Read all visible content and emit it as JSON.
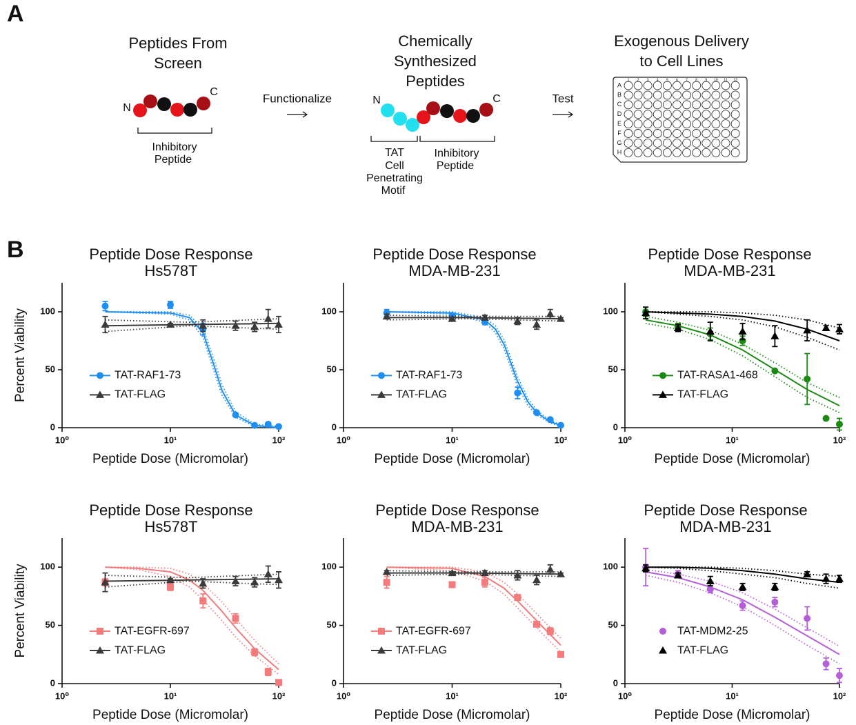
{
  "panel_a": {
    "label": "A",
    "step1": {
      "title": [
        "Peptides From",
        "Screen"
      ],
      "n": "N",
      "c": "C",
      "bracket": [
        "Inhibitory",
        "Peptide"
      ]
    },
    "arrow1": "Functionalize",
    "step2": {
      "title": [
        "Chemically",
        "Synthesized",
        "Peptides"
      ],
      "n": "N",
      "c": "C",
      "bracket_left": [
        "TAT",
        "Cell",
        "Penetrating",
        "Motif"
      ],
      "bracket_right": [
        "Inhibitory",
        "Peptide"
      ]
    },
    "arrow2": "Test",
    "step3": {
      "title": [
        "Exogenous Delivery",
        "to Cell Lines"
      ],
      "rows": [
        "A",
        "B",
        "C",
        "D",
        "E",
        "F",
        "G",
        "H"
      ],
      "columns": [
        "1",
        "2",
        "3",
        "4",
        "5",
        "6",
        "7",
        "8",
        "9",
        "10",
        "11",
        "12"
      ]
    }
  },
  "panel_b_label": "B",
  "chart_data": [
    {
      "type": "scatter",
      "title": "Peptide Dose Response",
      "subtitle": "Hs578T",
      "xlabel": "Peptide Dose (Micromolar)",
      "ylabel": "Percent Viability",
      "xscale": "log",
      "xlim": [
        1,
        100
      ],
      "ylim": [
        0,
        125
      ],
      "xticks": [
        {
          "value": 1,
          "label": "10⁰"
        },
        {
          "value": 10,
          "label": "10¹"
        },
        {
          "value": 100,
          "label": "10²"
        }
      ],
      "yticks": [
        0,
        50,
        100
      ],
      "legend": "lower left",
      "x": [
        2.5,
        10,
        20,
        40,
        60,
        80,
        100
      ],
      "series": [
        {
          "name": "TAT-RAF1-73",
          "color": "#1f8ef1",
          "marker": "circle",
          "values": [
            105,
            106,
            85,
            11,
            2,
            3,
            1
          ],
          "errors": [
            4,
            3,
            5,
            1,
            1,
            1,
            1
          ],
          "fit": {
            "x": [
              2.5,
              10,
              15,
              20,
              25,
              30,
              40,
              60,
              100
            ],
            "values": [
              100,
              99,
              95,
              82,
              55,
              32,
              11,
              2,
              0
            ],
            "lower": [
              100,
              98,
              93,
              78,
              50,
              28,
              9,
              1,
              0
            ],
            "upper": [
              100,
              100,
              97,
              86,
              60,
              37,
              14,
              3,
              1
            ]
          }
        },
        {
          "name": "TAT-FLAG",
          "color": "#3a3a3a",
          "marker": "triangle",
          "values": [
            89,
            89,
            88,
            88,
            87,
            94,
            89
          ],
          "errors": [
            7,
            1,
            5,
            4,
            4,
            8,
            7
          ],
          "fit": {
            "x": [
              2.5,
              15,
              100
            ],
            "values": [
              88,
              89,
              90
            ],
            "lower": [
              83,
              88,
              85
            ],
            "upper": [
              93,
              91,
              94
            ]
          }
        }
      ]
    },
    {
      "type": "scatter",
      "title": "Peptide Dose Response",
      "subtitle": "MDA-MB-231",
      "xlabel": "Peptide Dose (Micromolar)",
      "xscale": "log",
      "xlim": [
        1,
        100
      ],
      "ylim": [
        0,
        125
      ],
      "xticks": [
        {
          "value": 1,
          "label": "10⁰"
        },
        {
          "value": 10,
          "label": "10¹"
        },
        {
          "value": 100,
          "label": "10²"
        }
      ],
      "yticks": [
        0,
        50,
        100
      ],
      "legend": "lower left",
      "x": [
        2.5,
        10,
        20,
        40,
        60,
        80,
        100
      ],
      "series": [
        {
          "name": "TAT-RAF1-73",
          "color": "#1f8ef1",
          "marker": "circle",
          "values": [
            99,
            97,
            91,
            30,
            13,
            7,
            2
          ],
          "errors": [
            3,
            1,
            2,
            5,
            1,
            1,
            1
          ],
          "fit": {
            "x": [
              2.5,
              10,
              20,
              25,
              30,
              35,
              40,
              50,
              60,
              80,
              100
            ],
            "values": [
              100,
              99,
              93,
              85,
              72,
              55,
              40,
              22,
              13,
              5,
              2
            ],
            "lower": [
              100,
              98,
              91,
              82,
              68,
              51,
              36,
              19,
              11,
              4,
              1
            ],
            "upper": [
              100,
              100,
              95,
              88,
              76,
              59,
              44,
              25,
              15,
              6,
              3
            ]
          }
        },
        {
          "name": "TAT-FLAG",
          "color": "#3a3a3a",
          "marker": "triangle",
          "values": [
            96,
            94,
            95,
            92,
            89,
            98,
            94
          ],
          "errors": [
            2,
            1,
            2,
            3,
            4,
            4,
            1
          ],
          "fit": {
            "x": [
              2.5,
              15,
              100
            ],
            "values": [
              95,
              95,
              94
            ],
            "lower": [
              93,
              94,
              92
            ],
            "upper": [
              97,
              96,
              96
            ]
          }
        }
      ]
    },
    {
      "type": "scatter",
      "title": "Peptide Dose Response",
      "subtitle": "MDA-MB-231",
      "xlabel": "Peptide Dose (Micromolar)",
      "xscale": "log",
      "xlim": [
        1,
        100
      ],
      "ylim": [
        0,
        125
      ],
      "xticks": [
        {
          "value": 1,
          "label": "10⁰"
        },
        {
          "value": 10,
          "label": "10¹"
        },
        {
          "value": 100,
          "label": "10²"
        }
      ],
      "yticks": [
        0,
        50,
        100
      ],
      "legend": "lower left",
      "x": [
        1.5625,
        3.125,
        6.25,
        12.5,
        25,
        50,
        75,
        100
      ],
      "series": [
        {
          "name": "TAT-RASA1-468",
          "color": "#1b8a12",
          "marker": "circle",
          "values": [
            100,
            87,
            81,
            75,
            49,
            42,
            8,
            3
          ],
          "errors": [
            4,
            3,
            5,
            4,
            1,
            22,
            1,
            5
          ],
          "fit": {
            "x": [
              1.5625,
              3.125,
              6.25,
              12.5,
              25,
              50,
              100
            ],
            "values": [
              93,
              88,
              80,
              67,
              50,
              33,
              19
            ],
            "lower": [
              90,
              85,
              76,
              62,
              44,
              26,
              13
            ],
            "upper": [
              96,
              91,
              84,
              72,
              56,
              39,
              26
            ]
          }
        },
        {
          "name": "TAT-FLAG",
          "color": "#000000",
          "marker": "triangle",
          "values": [
            99,
            86,
            83,
            83,
            79,
            84,
            86,
            85
          ],
          "errors": [
            5,
            3,
            8,
            7,
            9,
            9,
            2,
            4
          ],
          "fit": {
            "x": [
              1.5625,
              3.125,
              6.25,
              12.5,
              25,
              50,
              100
            ],
            "values": [
              100,
              99,
              98,
              96,
              92,
              85,
              75
            ],
            "lower": [
              100,
              98,
              96,
              93,
              87,
              78,
              67
            ],
            "upper": [
              100,
              100,
              100,
              99,
              97,
              93,
              86
            ]
          }
        }
      ]
    },
    {
      "type": "scatter",
      "title": "Peptide Dose Response",
      "subtitle": "Hs578T",
      "xlabel": "Peptide Dose (Micromolar)",
      "ylabel": "Percent Viability",
      "xscale": "log",
      "xlim": [
        1,
        100
      ],
      "ylim": [
        0,
        125
      ],
      "xticks": [
        {
          "value": 1,
          "label": "10⁰"
        },
        {
          "value": 10,
          "label": "10¹"
        },
        {
          "value": 100,
          "label": "10²"
        }
      ],
      "yticks": [
        0,
        50,
        100
      ],
      "legend": "lower left",
      "x": [
        2.5,
        10,
        20,
        40,
        60,
        80,
        100
      ],
      "series": [
        {
          "name": "TAT-EGFR-697",
          "color": "#f37b7b",
          "marker": "square",
          "values": [
            87,
            83,
            71,
            56,
            27,
            10,
            1
          ],
          "errors": [
            3,
            3,
            6,
            4,
            3,
            3,
            1
          ],
          "fit": {
            "x": [
              2.5,
              5,
              10,
              15,
              20,
              30,
              40,
              60,
              100
            ],
            "values": [
              100,
              99,
              96,
              89,
              80,
              62,
              48,
              30,
              12
            ],
            "lower": [
              100,
              98,
              92,
              83,
              72,
              54,
              40,
              24,
              8
            ],
            "upper": [
              100,
              100,
              99,
              94,
              86,
              70,
              56,
              37,
              17
            ]
          }
        },
        {
          "name": "TAT-FLAG",
          "color": "#3a3a3a",
          "marker": "triangle",
          "values": [
            87,
            89,
            86,
            88,
            87,
            94,
            89
          ],
          "errors": [
            8,
            1,
            4,
            4,
            4,
            7,
            7
          ],
          "fit": {
            "x": [
              2.5,
              15,
              100
            ],
            "values": [
              88,
              89,
              90
            ],
            "lower": [
              83,
              88,
              85
            ],
            "upper": [
              93,
              91,
              94
            ]
          }
        }
      ]
    },
    {
      "type": "scatter",
      "title": "Peptide Dose Response",
      "subtitle": "MDA-MB-231",
      "xlabel": "Peptide Dose (Micromolar)",
      "xscale": "log",
      "xlim": [
        1,
        100
      ],
      "ylim": [
        0,
        125
      ],
      "xticks": [
        {
          "value": 1,
          "label": "10⁰"
        },
        {
          "value": 10,
          "label": "10¹"
        },
        {
          "value": 100,
          "label": "10²"
        }
      ],
      "yticks": [
        0,
        50,
        100
      ],
      "legend": "lower left",
      "x": [
        2.5,
        10,
        20,
        40,
        60,
        80,
        100
      ],
      "series": [
        {
          "name": "TAT-EGFR-697",
          "color": "#f37b7b",
          "marker": "square",
          "values": [
            87,
            85,
            87,
            74,
            51,
            45,
            25
          ],
          "errors": [
            5,
            2,
            4,
            1,
            1,
            3,
            1
          ],
          "fit": {
            "x": [
              2.5,
              10,
              20,
              30,
              40,
              60,
              80,
              100
            ],
            "values": [
              100,
              99,
              92,
              82,
              71,
              54,
              42,
              33
            ],
            "lower": [
              100,
              97,
              88,
              77,
              65,
              48,
              36,
              27
            ],
            "upper": [
              100,
              100,
              96,
              87,
              77,
              60,
              48,
              39
            ]
          }
        },
        {
          "name": "TAT-FLAG",
          "color": "#3a3a3a",
          "marker": "triangle",
          "values": [
            96,
            95,
            95,
            93,
            89,
            98,
            94
          ],
          "errors": [
            1,
            1,
            2,
            4,
            4,
            4,
            1
          ],
          "fit": {
            "x": [
              2.5,
              15,
              100
            ],
            "values": [
              95,
              95,
              94
            ],
            "lower": [
              93,
              94,
              92
            ],
            "upper": [
              97,
              96,
              96
            ]
          }
        }
      ]
    },
    {
      "type": "scatter",
      "title": "Peptide Dose Response",
      "subtitle": "MDA-MB-231",
      "xlabel": "Peptide Dose (Micromolar)",
      "xscale": "log",
      "xlim": [
        1,
        100
      ],
      "ylim": [
        0,
        125
      ],
      "xticks": [
        {
          "value": 1,
          "label": "10⁰"
        },
        {
          "value": 10,
          "label": "10¹"
        },
        {
          "value": 100,
          "label": "10²"
        }
      ],
      "yticks": [
        0,
        50,
        100
      ],
      "legend": "lower left",
      "x": [
        1.5625,
        3.125,
        6.25,
        12.5,
        25,
        50,
        75,
        100
      ],
      "series": [
        {
          "name": "TAT-MDM2-25",
          "color": "#b45fd8",
          "marker": "circle",
          "legend_line": false,
          "values": [
            100,
            94,
            81,
            67,
            70,
            56,
            17,
            7
          ],
          "errors": [
            16,
            3,
            3,
            4,
            4,
            10,
            5,
            6
          ],
          "fit": {
            "x": [
              1.5625,
              3.125,
              6.25,
              12.5,
              25,
              50,
              100
            ],
            "values": [
              96,
              91,
              83,
              72,
              57,
              41,
              25
            ],
            "lower": [
              93,
              87,
              78,
              66,
              50,
              33,
              17
            ],
            "upper": [
              98,
              94,
              88,
              78,
              64,
              48,
              32
            ]
          }
        },
        {
          "name": "TAT-FLAG",
          "color": "#000000",
          "marker": "triangle",
          "legend_line": false,
          "values": [
            99,
            93,
            88,
            83,
            83,
            94,
            90,
            90
          ],
          "errors": [
            3,
            2,
            4,
            3,
            3,
            2,
            4,
            3
          ],
          "fit": {
            "x": [
              1.5625,
              3.125,
              6.25,
              12.5,
              25,
              50,
              100
            ],
            "values": [
              100,
              100,
              99,
              97,
              94,
              90,
              87
            ],
            "lower": [
              100,
              99,
              97,
              94,
              91,
              86,
              82
            ],
            "upper": [
              100,
              100,
              100,
              99,
              97,
              94,
              92
            ]
          }
        }
      ]
    }
  ]
}
